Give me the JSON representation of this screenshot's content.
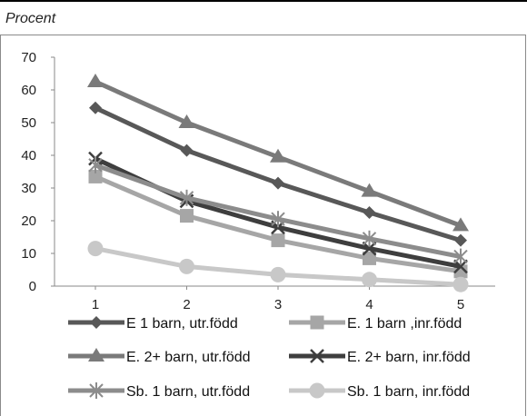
{
  "caption": "Procent",
  "chart_data": {
    "type": "line",
    "title": "",
    "xlabel": "",
    "ylabel": "Procent",
    "x": [
      1,
      2,
      3,
      4,
      5
    ],
    "ylim": [
      0,
      70
    ],
    "yticks": [
      0,
      10,
      20,
      30,
      40,
      50,
      60,
      70
    ],
    "grid": false,
    "legend_position": "bottom",
    "series": [
      {
        "name": "E 1 barn, utr.född",
        "values": [
          54.5,
          41.5,
          31.5,
          22.5,
          14
        ],
        "color": "#585858",
        "marker": "diamond"
      },
      {
        "name": "E. 1 barn ,inr.född",
        "values": [
          33.5,
          21.5,
          14,
          8.5,
          4.5
        ],
        "color": "#a6a6a6",
        "marker": "square"
      },
      {
        "name": "E. 2+ barn, utr.född",
        "values": [
          62.5,
          50,
          39.5,
          29,
          18.5
        ],
        "color": "#7a7a7a",
        "marker": "triangle"
      },
      {
        "name": "E. 2+ barn, inr.född",
        "values": [
          39,
          26,
          18,
          11.5,
          6
        ],
        "color": "#3e3e3e",
        "marker": "x"
      },
      {
        "name": "Sb. 1 barn, utr.född",
        "values": [
          37,
          27,
          20.5,
          14.5,
          9
        ],
        "color": "#8c8c8c",
        "marker": "asterisk"
      },
      {
        "name": "Sb. 1 barn, inr.född",
        "values": [
          11.5,
          6,
          3.5,
          2,
          0.5
        ],
        "color": "#c8c8c8",
        "marker": "circle"
      }
    ]
  }
}
